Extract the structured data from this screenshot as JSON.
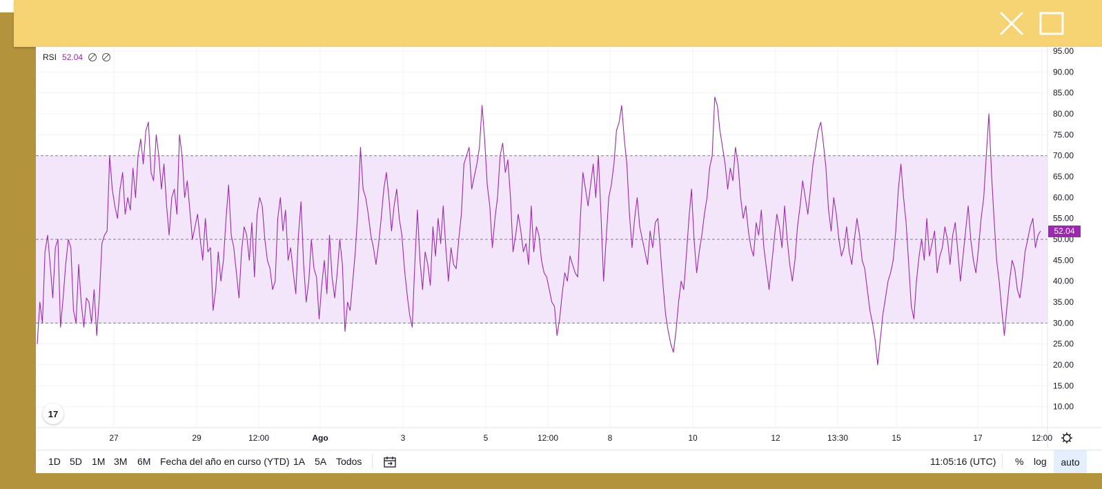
{
  "window": {
    "controls": {
      "close_icon": "close-icon",
      "maximize_icon": "maximize-icon"
    }
  },
  "legend": {
    "name": "RSI",
    "value": "52.04"
  },
  "colors": {
    "accent": "#9c27b0",
    "band": "#f3e6fa",
    "topbar": "#f5d272",
    "frame": "#b3943c"
  },
  "price_badge": "52.04",
  "range_buttons": [
    "1D",
    "5D",
    "1M",
    "3M",
    "6M",
    "Fecha del año en curso (YTD)",
    "1A",
    "5A",
    "Todos"
  ],
  "bottom_right": {
    "time": "11:05:16 (UTC)",
    "percent": "%",
    "log": "log",
    "auto": "auto"
  },
  "chart_data": {
    "type": "line",
    "title": "",
    "series": [
      {
        "name": "RSI",
        "values": [
          25,
          35,
          30,
          47,
          51,
          44,
          36,
          48,
          50,
          29,
          36,
          44,
          50,
          48,
          33,
          30,
          44,
          35,
          29,
          36,
          35,
          30,
          38,
          27,
          36,
          49,
          51,
          52,
          70,
          62,
          58,
          55,
          62,
          66,
          56,
          60,
          57,
          67,
          60,
          70,
          74,
          68,
          76,
          78,
          66,
          64,
          75,
          70,
          62,
          68,
          58,
          51,
          60,
          62,
          56,
          75,
          70,
          60,
          64,
          57,
          50,
          53,
          56,
          50,
          45,
          55,
          47,
          48,
          33,
          38,
          47,
          40,
          45,
          55,
          63,
          51,
          48,
          42,
          36,
          47,
          53,
          51,
          45,
          54,
          41,
          56,
          60,
          58,
          50,
          45,
          43,
          38,
          40,
          55,
          60,
          52,
          57,
          45,
          48,
          42,
          37,
          51,
          59,
          44,
          35,
          40,
          50,
          43,
          41,
          31,
          39,
          45,
          37,
          51,
          41,
          36,
          42,
          50,
          44,
          28,
          35,
          33,
          40,
          47,
          57,
          72,
          62,
          60,
          56,
          51,
          48,
          44,
          49,
          55,
          62,
          66,
          60,
          52,
          58,
          62,
          55,
          51,
          43,
          37,
          32,
          29,
          44,
          57,
          45,
          38,
          47,
          44,
          39,
          53,
          46,
          55,
          49,
          58,
          48,
          40,
          48,
          44,
          43,
          50,
          56,
          68,
          70,
          72,
          62,
          65,
          68,
          72,
          82,
          74,
          63,
          58,
          48,
          55,
          60,
          70,
          73,
          66,
          69,
          60,
          47,
          51,
          56,
          52,
          47,
          49,
          44,
          58,
          47,
          53,
          51,
          45,
          42,
          41,
          38,
          35,
          34,
          27,
          31,
          37,
          42,
          40,
          46,
          44,
          42,
          41,
          55,
          66,
          62,
          58,
          63,
          68,
          60,
          70,
          56,
          40,
          50,
          60,
          63,
          68,
          76,
          78,
          82,
          74,
          68,
          56,
          48,
          55,
          60,
          53,
          50,
          47,
          44,
          52,
          48,
          54,
          55,
          47,
          39,
          32,
          28,
          25,
          23,
          28,
          35,
          40,
          38,
          46,
          55,
          62,
          50,
          42,
          47,
          51,
          56,
          60,
          67,
          70,
          84,
          82,
          76,
          72,
          68,
          62,
          67,
          64,
          72,
          68,
          60,
          55,
          58,
          52,
          48,
          46,
          54,
          51,
          57,
          48,
          43,
          38,
          44,
          50,
          56,
          53,
          48,
          58,
          50,
          44,
          40,
          45,
          53,
          58,
          64,
          60,
          56,
          62,
          68,
          72,
          76,
          78,
          73,
          67,
          57,
          52,
          60,
          56,
          50,
          46,
          48,
          53,
          47,
          44,
          50,
          55,
          51,
          45,
          43,
          38,
          33,
          30,
          26,
          20,
          26,
          32,
          36,
          40,
          42,
          45,
          52,
          62,
          68,
          60,
          54,
          44,
          34,
          31,
          40,
          46,
          50,
          45,
          55,
          46,
          49,
          52,
          42,
          46,
          48,
          53,
          50,
          44,
          51,
          54,
          47,
          40,
          46,
          52,
          58,
          50,
          45,
          42,
          48,
          55,
          60,
          70,
          80,
          66,
          55,
          45,
          40,
          33,
          27,
          34,
          40,
          45,
          43,
          38,
          36,
          41,
          47,
          50,
          53,
          55,
          48,
          51,
          52
        ]
      }
    ],
    "xlabel": "",
    "ylabel": "",
    "x_ticks": [
      "27",
      "29",
      "12:00",
      "Ago",
      "3",
      "5",
      "12:00",
      "8",
      "10",
      "12",
      "13:30",
      "15",
      "17",
      "12:00"
    ],
    "y_ticks": [
      "95.00",
      "90.00",
      "85.00",
      "80.00",
      "75.00",
      "70.00",
      "65.00",
      "60.00",
      "55.00",
      "50.00",
      "45.00",
      "40.00",
      "35.00",
      "30.00",
      "25.00",
      "20.00",
      "15.00",
      "10.00"
    ],
    "ylim": [
      5,
      96
    ],
    "bands": {
      "upper": 70,
      "middle": 50,
      "lower": 30
    },
    "grid": true,
    "legend_position": "top-left"
  }
}
